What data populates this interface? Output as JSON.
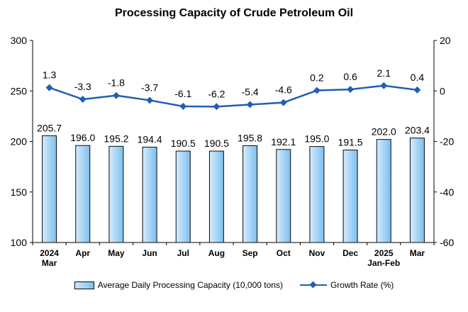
{
  "chart_data": {
    "type": "bar",
    "title": "Processing Capacity of Crude Petroleum Oil",
    "categories": [
      "2024\nMar",
      "Apr",
      "May",
      "Jun",
      "Jul",
      "Aug",
      "Sep",
      "Oct",
      "Nov",
      "Dec",
      "2025\nJan-Feb",
      "Mar"
    ],
    "series": [
      {
        "name": "Average Daily Processing Capacity (10,000 tons)",
        "type": "bar",
        "axis": "left",
        "values": [
          205.7,
          196.0,
          195.2,
          194.4,
          190.5,
          190.5,
          195.8,
          192.1,
          195.0,
          191.5,
          202.0,
          203.4
        ],
        "labels": [
          "205.7",
          "196.0",
          "195.2",
          "194.4",
          "190.5",
          "190.5",
          "195.8",
          "192.1",
          "195.0",
          "191.5",
          "202.0",
          "203.4"
        ],
        "color": "#9fd1f6"
      },
      {
        "name": "Growth Rate (%)",
        "type": "line",
        "axis": "right",
        "values": [
          1.3,
          -3.3,
          -1.8,
          -3.7,
          -6.1,
          -6.2,
          -5.4,
          -4.6,
          0.2,
          0.6,
          2.1,
          0.4
        ],
        "labels": [
          "1.3",
          "-3.3",
          "-1.8",
          "-3.7",
          "-6.1",
          "-6.2",
          "-5.4",
          "-4.6",
          "0.2",
          "0.6",
          "2.1",
          "0.4"
        ],
        "color": "#1f5fb4"
      }
    ],
    "ylim": [
      100,
      300
    ],
    "yticks": [
      "100",
      "150",
      "200",
      "250",
      "300"
    ],
    "y2lim": [
      -60,
      20
    ],
    "y2ticks": [
      "-60",
      "-40",
      "-20",
      "0",
      "20"
    ],
    "grid": false,
    "legend_position": "bottom"
  }
}
